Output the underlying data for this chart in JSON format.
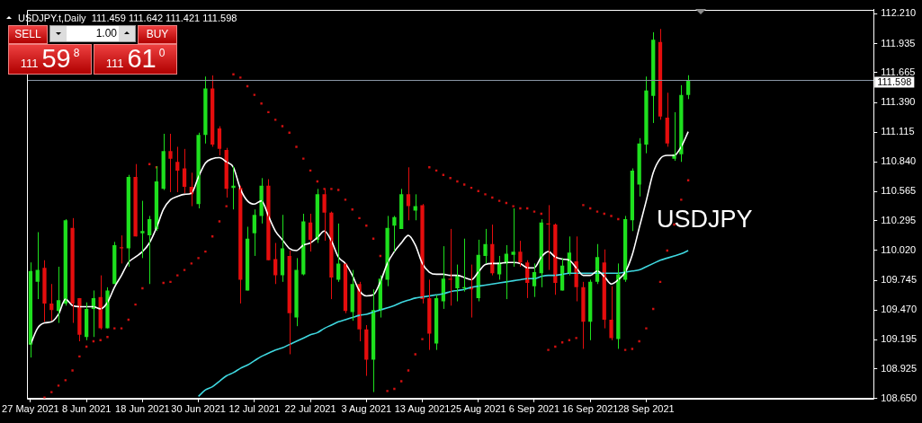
{
  "chart_data": {
    "type": "candlestick",
    "title": "USDJPY.t,Daily  111.459 111.642 111.421 111.598",
    "categories": [
      "27 May 2021",
      null,
      null,
      null,
      null,
      null,
      null,
      null,
      "8 Jun 2021",
      null,
      null,
      null,
      null,
      null,
      null,
      null,
      "18 Jun 2021",
      null,
      null,
      null,
      null,
      null,
      null,
      null,
      "30 Jun 2021",
      null,
      null,
      null,
      null,
      null,
      null,
      null,
      "12 Jul 2021",
      null,
      null,
      null,
      null,
      null,
      null,
      null,
      "22 Jul 2021",
      null,
      null,
      null,
      null,
      null,
      null,
      null,
      "3 Aug 2021",
      null,
      null,
      null,
      null,
      null,
      null,
      null,
      "13 Aug 2021",
      null,
      null,
      null,
      null,
      null,
      null,
      null,
      "25 Aug 2021",
      null,
      null,
      null,
      null,
      null,
      null,
      null,
      "6 Sep 2021",
      null,
      null,
      null,
      null,
      null,
      null,
      null,
      "16 Sep 2021",
      null,
      null,
      null,
      null,
      null,
      null,
      null,
      "28 Sep 2021",
      null,
      null,
      null,
      null,
      null,
      null,
      null,
      null,
      null,
      null,
      null,
      null,
      null,
      null,
      null,
      null,
      null,
      null,
      null,
      null,
      null,
      null,
      null,
      null,
      null,
      null,
      null,
      null,
      null,
      null,
      null,
      null
    ],
    "series": [
      {
        "ohlc": [
          [
            109.15,
            109.91,
            109.03,
            109.83
          ],
          [
            109.73,
            110.19,
            109.57,
            109.84
          ],
          [
            109.86,
            109.93,
            109.36,
            109.53
          ],
          [
            109.53,
            109.71,
            109.37,
            109.47
          ],
          [
            109.46,
            109.87,
            109.35,
            109.56
          ],
          [
            109.53,
            110.31,
            109.51,
            110.3
          ],
          [
            110.23,
            110.32,
            109.35,
            109.53
          ],
          [
            109.58,
            109.58,
            109.18,
            109.24
          ],
          [
            109.22,
            109.54,
            109.19,
            109.48
          ],
          [
            109.48,
            109.65,
            109.22,
            109.58
          ],
          [
            109.59,
            109.79,
            109.29,
            109.3
          ],
          [
            109.3,
            109.68,
            109.3,
            109.65
          ],
          [
            109.71,
            110.1,
            109.71,
            110.07
          ],
          [
            110.05,
            110.16,
            109.9,
            110.04
          ],
          [
            110.04,
            110.72,
            109.87,
            110.7
          ],
          [
            110.7,
            110.82,
            110.15,
            110.15
          ],
          [
            110.18,
            110.48,
            109.95,
            110.2
          ],
          [
            110.16,
            110.34,
            109.71,
            110.31
          ],
          [
            110.22,
            110.8,
            110.2,
            110.66
          ],
          [
            110.59,
            111.1,
            110.58,
            110.94
          ],
          [
            110.94,
            111.1,
            110.56,
            110.87
          ],
          [
            110.84,
            110.98,
            110.56,
            110.76
          ],
          [
            110.78,
            110.96,
            110.55,
            110.61
          ],
          [
            110.61,
            110.74,
            110.43,
            110.54
          ],
          [
            110.45,
            111.11,
            110.41,
            111.09
          ],
          [
            111.09,
            111.63,
            111.01,
            111.52
          ],
          [
            111.52,
            111.64,
            110.98,
            111.0
          ],
          [
            111.15,
            111.17,
            110.9,
            110.96
          ],
          [
            110.95,
            110.97,
            110.51,
            110.59
          ],
          [
            110.6,
            110.8,
            110.4,
            110.62
          ],
          [
            110.6,
            110.62,
            109.53,
            109.75
          ],
          [
            109.65,
            110.24,
            109.65,
            110.13
          ],
          [
            110.18,
            110.4,
            109.97,
            110.35
          ],
          [
            110.34,
            110.69,
            110.27,
            110.62
          ],
          [
            110.62,
            110.68,
            109.93,
            109.93
          ],
          [
            109.94,
            110.09,
            109.71,
            109.79
          ],
          [
            109.79,
            110.35,
            109.73,
            110.04
          ],
          [
            109.97,
            110.02,
            109.06,
            109.44
          ],
          [
            109.4,
            109.95,
            109.32,
            109.84
          ],
          [
            109.8,
            110.36,
            109.79,
            110.29
          ],
          [
            110.28,
            110.36,
            110.01,
            110.12
          ],
          [
            110.12,
            110.59,
            110.09,
            110.54
          ],
          [
            110.54,
            110.59,
            110.11,
            110.37
          ],
          [
            110.37,
            110.38,
            109.57,
            109.77
          ],
          [
            109.75,
            110.27,
            109.73,
            109.9
          ],
          [
            109.9,
            109.9,
            109.44,
            109.46
          ],
          [
            109.45,
            109.84,
            109.37,
            109.71
          ],
          [
            109.71,
            109.73,
            109.18,
            109.29
          ],
          [
            109.29,
            109.33,
            108.86,
            109.01
          ],
          [
            109.01,
            109.66,
            108.71,
            109.47
          ],
          [
            109.47,
            109.79,
            109.4,
            109.76
          ],
          [
            109.75,
            110.34,
            109.69,
            110.23
          ],
          [
            110.25,
            110.34,
            110.01,
            110.33
          ],
          [
            110.22,
            110.59,
            110.22,
            110.54
          ],
          [
            110.54,
            110.79,
            110.3,
            110.43
          ],
          [
            110.39,
            110.54,
            110.3,
            110.43
          ],
          [
            110.44,
            110.45,
            109.53,
            109.57
          ],
          [
            109.58,
            109.75,
            109.1,
            109.25
          ],
          [
            109.16,
            109.61,
            109.1,
            109.58
          ],
          [
            109.55,
            110.06,
            109.48,
            109.76
          ],
          [
            109.76,
            110.22,
            109.51,
            109.75
          ],
          [
            109.67,
            109.89,
            109.55,
            109.79
          ],
          [
            109.67,
            110.13,
            109.64,
            109.68
          ],
          [
            109.68,
            109.89,
            109.4,
            109.66
          ],
          [
            109.58,
            110.12,
            109.55,
            109.98
          ],
          [
            109.97,
            110.22,
            109.9,
            110.08
          ],
          [
            110.08,
            110.26,
            109.79,
            109.81
          ],
          [
            109.8,
            109.97,
            109.75,
            109.91
          ],
          [
            109.9,
            110.07,
            109.57,
            109.99
          ],
          [
            109.98,
            110.41,
            109.87,
            110.01
          ],
          [
            110.01,
            110.11,
            109.87,
            109.91
          ],
          [
            109.91,
            109.93,
            109.58,
            109.72
          ],
          [
            109.69,
            109.9,
            109.59,
            109.82
          ],
          [
            109.81,
            110.31,
            109.68,
            110.28
          ],
          [
            110.27,
            110.44,
            109.84,
            110.26
          ],
          [
            110.26,
            110.27,
            109.61,
            109.72
          ],
          [
            109.65,
            109.95,
            109.65,
            109.88
          ],
          [
            109.81,
            110.15,
            109.79,
            110.0
          ],
          [
            109.92,
            110.15,
            109.55,
            109.68
          ],
          [
            109.68,
            109.73,
            109.11,
            109.36
          ],
          [
            109.36,
            109.75,
            109.19,
            109.73
          ],
          [
            109.73,
            110.08,
            109.71,
            109.96
          ],
          [
            109.91,
            110.03,
            109.3,
            109.38
          ],
          [
            109.38,
            109.69,
            109.19,
            109.21
          ],
          [
            109.2,
            109.9,
            109.11,
            109.8
          ],
          [
            109.75,
            110.34,
            109.73,
            110.31
          ],
          [
            110.3,
            110.78,
            110.2,
            110.76
          ],
          [
            110.63,
            111.06,
            110.52,
            111.01
          ],
          [
            111.0,
            111.63,
            110.92,
            111.5
          ],
          [
            111.45,
            112.04,
            111.2,
            111.97
          ],
          [
            111.95,
            112.07,
            111.23,
            111.26
          ],
          [
            111.25,
            111.48,
            110.98,
            111.01
          ],
          [
            110.87,
            111.3,
            110.85,
            110.91
          ],
          [
            110.91,
            111.55,
            110.84,
            111.46
          ],
          [
            111.459,
            111.642,
            111.421,
            111.598
          ],
          null,
          null,
          null,
          null,
          null,
          null,
          null,
          null,
          null,
          null,
          null,
          null,
          null,
          null,
          null,
          null,
          null,
          null,
          null,
          null,
          null,
          null,
          null,
          null,
          null,
          null
        ],
        "colors": [
          "#1ee01e",
          "#1ee01e",
          "#e50d0d",
          "#e50d0d",
          "#1ee01e",
          "#1ee01e",
          "#e50d0d",
          "#e50d0d",
          "#1ee01e",
          "#1ee01e",
          "#e50d0d",
          "#1ee01e",
          "#1ee01e",
          "#e50d0d",
          "#1ee01e",
          "#e50d0d",
          "#1ee01e",
          "#1ee01e",
          "#1ee01e",
          "#1ee01e",
          "#e50d0d",
          "#e50d0d",
          "#e50d0d",
          "#e50d0d",
          "#1ee01e",
          "#1ee01e",
          "#e50d0d",
          "#e50d0d",
          "#e50d0d",
          "#1ee01e",
          "#e50d0d",
          "#1ee01e",
          "#1ee01e",
          "#1ee01e",
          "#e50d0d",
          "#e50d0d",
          "#1ee01e",
          "#e50d0d",
          "#1ee01e",
          "#1ee01e",
          "#e50d0d",
          "#1ee01e",
          "#e50d0d",
          "#e50d0d",
          "#1ee01e",
          "#e50d0d",
          "#1ee01e",
          "#e50d0d",
          "#e50d0d",
          "#1ee01e",
          "#1ee01e",
          "#1ee01e",
          "#1ee01e",
          "#1ee01e",
          "#e50d0d",
          "#1ee01e",
          "#e50d0d",
          "#e50d0d",
          "#1ee01e",
          "#1ee01e",
          "#e50d0d",
          "#1ee01e",
          "#1ee01e",
          "#e50d0d",
          "#1ee01e",
          "#1ee01e",
          "#e50d0d",
          "#1ee01e",
          "#1ee01e",
          "#1ee01e",
          "#e50d0d",
          "#e50d0d",
          "#1ee01e",
          "#1ee01e",
          "#e50d0d",
          "#e50d0d",
          "#1ee01e",
          "#1ee01e",
          "#e50d0d",
          "#e50d0d",
          "#1ee01e",
          "#1ee01e",
          "#e50d0d",
          "#e50d0d",
          "#1ee01e",
          "#1ee01e",
          "#1ee01e",
          "#1ee01e",
          "#1ee01e",
          "#1ee01e",
          "#e50d0d",
          "#e50d0d",
          "#1ee01e",
          "#1ee01e",
          "#1ee01e",
          null,
          null,
          null,
          null,
          null,
          null,
          null,
          null,
          null,
          null,
          null,
          null,
          null,
          null,
          null,
          null,
          null,
          null,
          null,
          null,
          null,
          null,
          null,
          null,
          null,
          null
        ]
      },
      {
        "type": "line",
        "color": "#ffffff",
        "values": [
          109.15,
          109.3,
          109.35,
          109.36,
          109.43,
          109.57,
          109.51,
          109.5,
          109.5,
          109.5,
          109.48,
          109.54,
          109.68,
          109.79,
          109.91,
          109.96,
          110.01,
          110.09,
          110.23,
          110.4,
          110.49,
          110.52,
          110.54,
          110.55,
          110.7,
          110.83,
          110.87,
          110.88,
          110.84,
          110.79,
          110.59,
          110.48,
          110.45,
          110.48,
          110.34,
          110.2,
          110.12,
          110.04,
          110.02,
          110.07,
          110.09,
          110.14,
          110.2,
          110.11,
          109.96,
          109.9,
          109.79,
          109.65,
          109.6,
          109.61,
          109.73,
          109.9,
          110.01,
          110.09,
          110.16,
          110.07,
          109.9,
          109.82,
          109.8,
          109.8,
          109.79,
          109.79,
          109.77,
          109.75,
          109.82,
          109.89,
          109.9,
          109.9,
          109.91,
          109.91,
          109.9,
          109.86,
          109.86,
          109.96,
          110.01,
          109.96,
          109.94,
          109.93,
          109.86,
          109.79,
          109.79,
          109.83,
          109.78,
          109.71,
          109.75,
          109.82,
          109.98,
          110.23,
          110.48,
          110.74,
          110.87,
          110.9,
          110.9,
          110.98,
          111.12,
          null,
          null,
          null,
          null,
          null,
          null,
          null,
          null,
          null,
          null,
          null,
          null,
          null,
          null,
          null,
          null,
          null,
          null,
          null,
          null,
          null,
          null,
          null,
          null,
          null,
          null
        ]
      },
      {
        "type": "line",
        "color": "#3fd8e0",
        "values": [
          null,
          null,
          null,
          null,
          null,
          null,
          null,
          null,
          null,
          null,
          null,
          null,
          null,
          null,
          null,
          null,
          null,
          null,
          null,
          null,
          null,
          null,
          null,
          null,
          108.67,
          108.73,
          108.76,
          108.81,
          108.86,
          108.89,
          108.93,
          108.96,
          109.0,
          109.04,
          109.07,
          109.1,
          109.12,
          109.15,
          109.18,
          109.21,
          109.24,
          109.26,
          109.3,
          109.33,
          109.36,
          109.38,
          109.4,
          109.42,
          109.43,
          109.45,
          109.47,
          109.49,
          109.51,
          109.54,
          109.56,
          109.58,
          109.59,
          109.6,
          109.61,
          109.62,
          109.64,
          109.65,
          109.66,
          109.68,
          109.69,
          109.7,
          109.71,
          109.72,
          109.73,
          109.74,
          109.75,
          109.76,
          109.76,
          109.78,
          109.79,
          109.79,
          109.8,
          109.81,
          109.81,
          109.81,
          109.81,
          109.81,
          109.81,
          109.81,
          109.81,
          109.82,
          109.83,
          109.84,
          109.87,
          109.9,
          109.93,
          109.95,
          109.97,
          109.99,
          110.02,
          null,
          null,
          null,
          null,
          null,
          null,
          null,
          null,
          null,
          null,
          null,
          null,
          null,
          null,
          null,
          null,
          null,
          null,
          null,
          null,
          null,
          null,
          null,
          null,
          null,
          null
        ]
      },
      {
        "type": "scatter",
        "color": "#d01010",
        "marker": "square",
        "values": [
          null,
          null,
          108.66,
          108.71,
          108.77,
          108.82,
          108.91,
          109.04,
          109.13,
          109.18,
          109.19,
          109.22,
          109.3,
          109.3,
          109.38,
          109.52,
          109.67,
          110.82,
          110.79,
          109.72,
          109.73,
          109.79,
          109.84,
          109.9,
          109.95,
          110.01,
          110.15,
          110.29,
          110.43,
          111.65,
          111.62,
          111.54,
          111.46,
          111.38,
          111.3,
          111.23,
          111.17,
          111.11,
          110.98,
          110.87,
          110.76,
          110.66,
          110.59,
          110.59,
          110.58,
          110.49,
          110.4,
          110.32,
          110.25,
          110.13,
          109.97,
          108.72,
          108.74,
          108.81,
          108.91,
          109.06,
          109.2,
          110.79,
          110.76,
          110.72,
          110.69,
          110.66,
          110.63,
          110.6,
          110.57,
          110.54,
          110.51,
          110.48,
          110.46,
          110.43,
          110.41,
          110.41,
          110.38,
          110.36,
          109.1,
          109.13,
          109.17,
          109.19,
          109.21,
          110.44,
          110.41,
          110.38,
          110.36,
          110.34,
          110.31,
          109.1,
          109.11,
          109.18,
          109.3,
          109.48,
          109.73,
          110.02,
          110.26,
          110.49,
          110.67,
          null,
          null,
          null,
          null,
          null,
          null,
          null,
          null,
          null,
          null,
          null,
          null,
          null,
          null,
          null,
          null,
          null,
          null,
          null,
          null,
          null,
          null,
          null,
          null,
          null,
          null
        ]
      }
    ],
    "ylim": [
      108.65,
      112.25
    ],
    "yticks": [
      {
        "value": 108.65,
        "label": "108.650"
      },
      {
        "value": 108.925,
        "label": "108.925"
      },
      {
        "value": 109.195,
        "label": "109.195"
      },
      {
        "value": 109.47,
        "label": "109.470"
      },
      {
        "value": 109.745,
        "label": "109.745"
      },
      {
        "value": 110.02,
        "label": "110.020"
      },
      {
        "value": 110.295,
        "label": "110.295"
      },
      {
        "value": 110.565,
        "label": "110.565"
      },
      {
        "value": 110.84,
        "label": "110.840"
      },
      {
        "value": 111.115,
        "label": "111.115"
      },
      {
        "value": 111.39,
        "label": "111.390"
      },
      {
        "value": 111.665,
        "label": "111.665"
      },
      {
        "value": 111.935,
        "label": "111.935"
      },
      {
        "value": 112.21,
        "label": "112.210"
      }
    ],
    "ref_lines": [
      {
        "axis": "y",
        "value": 111.598,
        "label": "111.598",
        "color": "#8a97a6"
      }
    ],
    "annotations": [
      "SELL",
      "1.00",
      "BUY",
      "111598",
      "111610",
      "USDJPY"
    ],
    "grid": false,
    "legend": false
  }
}
